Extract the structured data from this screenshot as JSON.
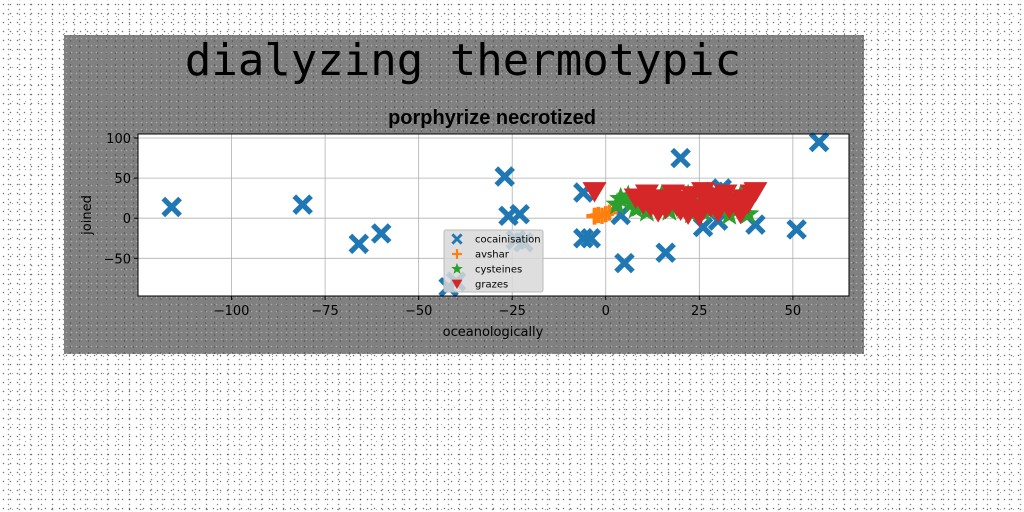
{
  "chart_data": {
    "type": "scatter",
    "suptitle": "dialyzing thermotypic",
    "title": "porphyrize necrotized",
    "xlabel": "oceanologically",
    "ylabel": "joined",
    "xlim": [
      -125,
      65
    ],
    "ylim": [
      -97,
      105
    ],
    "xticks": [
      -100,
      -75,
      -50,
      -25,
      0,
      25,
      50
    ],
    "yticks": [
      -50,
      0,
      50,
      100
    ],
    "xtick_labels": [
      "−100",
      "−75",
      "−50",
      "−25",
      "0",
      "25",
      "50"
    ],
    "ytick_labels": [
      "−50",
      "0",
      "50",
      "100"
    ],
    "grid": true,
    "legend_position": "lower-center",
    "series": [
      {
        "name": "cocainisation",
        "marker": "x",
        "color": "#1f77b4",
        "points": [
          [
            -116,
            14
          ],
          [
            -81,
            17
          ],
          [
            -66,
            -32
          ],
          [
            -60,
            -19
          ],
          [
            -42,
            -86
          ],
          [
            -40,
            -79
          ],
          [
            -27,
            52
          ],
          [
            -26,
            3
          ],
          [
            -23,
            5
          ],
          [
            -24,
            -27
          ],
          [
            -22,
            -30
          ],
          [
            -6,
            32
          ],
          [
            -6,
            -25
          ],
          [
            -4,
            -25
          ],
          [
            4,
            4
          ],
          [
            5,
            -56
          ],
          [
            16,
            -43
          ],
          [
            20,
            75
          ],
          [
            26,
            -11
          ],
          [
            29,
            33
          ],
          [
            30,
            -3
          ],
          [
            31,
            37
          ],
          [
            40,
            -8
          ],
          [
            51,
            -14
          ],
          [
            57,
            95
          ]
        ]
      },
      {
        "name": "avshar",
        "marker": "+",
        "color": "#ff7f0e",
        "points": [
          [
            -3,
            2
          ],
          [
            -2,
            4
          ],
          [
            -1,
            3
          ],
          [
            0,
            5
          ],
          [
            1,
            7
          ],
          [
            -3,
            3
          ]
        ]
      },
      {
        "name": "cysteines",
        "marker": "*",
        "color": "#2ca02c",
        "points": [
          [
            3,
            17
          ],
          [
            4,
            24
          ],
          [
            6,
            27
          ],
          [
            7,
            19
          ],
          [
            9,
            14
          ],
          [
            10,
            27
          ],
          [
            11,
            8
          ],
          [
            12,
            23
          ],
          [
            13,
            25
          ],
          [
            14,
            16
          ],
          [
            15,
            28
          ],
          [
            16,
            20
          ],
          [
            17,
            9
          ],
          [
            18,
            26
          ],
          [
            19,
            22
          ],
          [
            21,
            12
          ],
          [
            22,
            28
          ],
          [
            23,
            6
          ],
          [
            24,
            23
          ],
          [
            25,
            18
          ],
          [
            27,
            24
          ],
          [
            28,
            10
          ],
          [
            30,
            20
          ],
          [
            31,
            26
          ],
          [
            32,
            14
          ],
          [
            33,
            4
          ],
          [
            34,
            22
          ],
          [
            35,
            11
          ],
          [
            36,
            27
          ],
          [
            37,
            16
          ],
          [
            38,
            5
          ],
          [
            8,
            12
          ],
          [
            26,
            8
          ]
        ]
      },
      {
        "name": "grazes",
        "marker": "v",
        "color": "#d62728",
        "points": [
          [
            -3,
            33
          ],
          [
            8,
            25
          ],
          [
            10,
            18
          ],
          [
            11,
            30
          ],
          [
            12,
            14
          ],
          [
            13,
            20
          ],
          [
            14,
            8
          ],
          [
            15,
            24
          ],
          [
            16,
            12
          ],
          [
            17,
            18
          ],
          [
            18,
            30
          ],
          [
            19,
            15
          ],
          [
            20,
            10
          ],
          [
            21,
            22
          ],
          [
            22,
            5
          ],
          [
            23,
            28
          ],
          [
            24,
            12
          ],
          [
            26,
            33
          ],
          [
            27,
            20
          ],
          [
            28,
            14
          ],
          [
            29,
            26
          ],
          [
            30,
            8
          ],
          [
            31,
            16
          ],
          [
            32,
            30
          ],
          [
            33,
            12
          ],
          [
            35,
            20
          ],
          [
            36,
            6
          ],
          [
            37,
            24
          ],
          [
            38,
            18
          ],
          [
            39,
            30
          ],
          [
            40,
            33
          ],
          [
            25,
            3
          ]
        ]
      }
    ]
  }
}
